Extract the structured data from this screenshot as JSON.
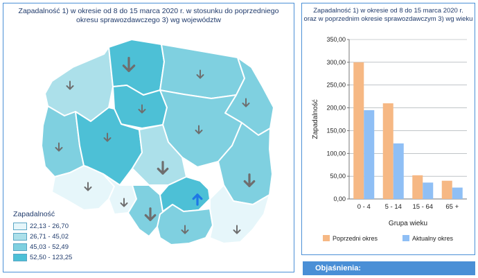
{
  "map": {
    "title": "Zapadalność 1) w okresie od 8 do 15 marca 2020 r. w stosunku do poprzedniego\nokresu sprawozdawczego 3) wg województw",
    "legend_title": "Zapadalność",
    "legend_items": [
      {
        "label": "22,13 - 26,70",
        "color": "#e6f6fa"
      },
      {
        "label": "26,71 - 45,02",
        "color": "#ace0ea"
      },
      {
        "label": "45,03 - 52,49",
        "color": "#7fd0e0"
      },
      {
        "label": "52,50 - 123,25",
        "color": "#4dc0d6"
      }
    ],
    "arrow_colors": {
      "down": "#6e6e6e",
      "up": "#1e78e6"
    },
    "regions": [
      {
        "name": "zachodniopomorskie",
        "class": 2,
        "arrow": "down"
      },
      {
        "name": "pomorskie",
        "class": 4,
        "arrow": "down"
      },
      {
        "name": "warminsko-mazurskie",
        "class": 3,
        "arrow": "down"
      },
      {
        "name": "podlaskie",
        "class": 3,
        "arrow": "down"
      },
      {
        "name": "lubuskie",
        "class": 3,
        "arrow": "down"
      },
      {
        "name": "kujawsko-pomorskie",
        "class": 4,
        "arrow": "down"
      },
      {
        "name": "wielkopolskie",
        "class": 4,
        "arrow": "down"
      },
      {
        "name": "mazowieckie",
        "class": 3,
        "arrow": "down"
      },
      {
        "name": "lodzkie",
        "class": 2,
        "arrow": "down"
      },
      {
        "name": "lubelskie",
        "class": 3,
        "arrow": "down"
      },
      {
        "name": "dolnoslaskie",
        "class": 1,
        "arrow": "down"
      },
      {
        "name": "opolskie",
        "class": 1,
        "arrow": "down"
      },
      {
        "name": "slaskie",
        "class": 3,
        "arrow": "down"
      },
      {
        "name": "swietokrzyskie",
        "class": 4,
        "arrow": "up"
      },
      {
        "name": "malopolskie",
        "class": 3,
        "arrow": "down"
      },
      {
        "name": "podkarpackie",
        "class": 1,
        "arrow": "down"
      }
    ]
  },
  "chart_data": {
    "type": "bar",
    "title": "Zapadalność 1) w okresie od 8 do 15 marca 2020 r.\noraz w poprzednim okresie sprawozdawczym 3) wg wieku",
    "xlabel": "Grupa wieku",
    "ylabel": "Zapadalność",
    "categories": [
      "0 - 4",
      "5 - 14",
      "15 - 64",
      "65 +"
    ],
    "series": [
      {
        "name": "Poprzedni okres",
        "color": "#f6b884",
        "values": [
          300,
          210,
          52,
          40
        ]
      },
      {
        "name": "Aktualny okres",
        "color": "#8fbff5",
        "values": [
          195,
          122,
          36,
          25
        ]
      }
    ],
    "ylim": [
      0,
      350
    ],
    "yticks": [
      "0,00",
      "50,00",
      "100,00",
      "150,00",
      "200,00",
      "250,00",
      "300,00",
      "350,00"
    ],
    "grid": true,
    "legend_position": "bottom"
  },
  "footer": {
    "label": "Objaśnienia:"
  }
}
